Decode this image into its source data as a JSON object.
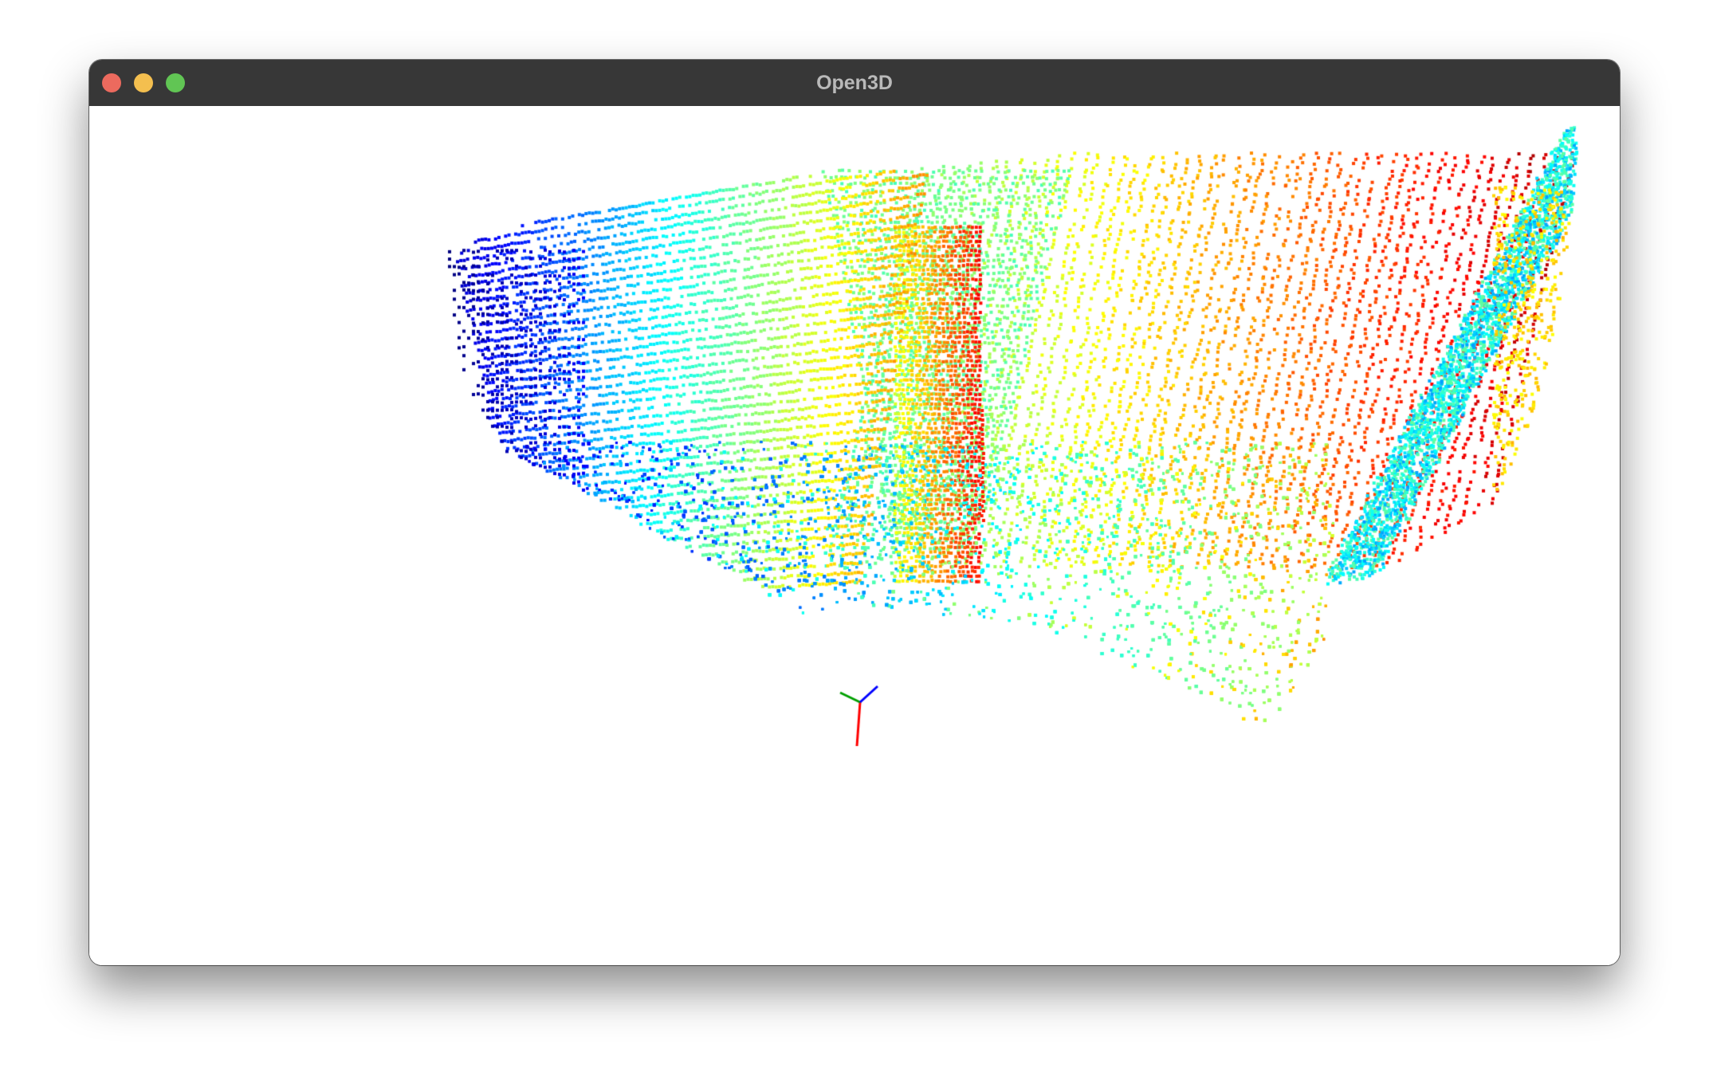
{
  "window": {
    "title": "Open3D",
    "controls": {
      "close": {
        "icon": "close-icon",
        "color": "#ec6a5e"
      },
      "minimize": {
        "icon": "minimize-icon",
        "color": "#f4bf4f"
      },
      "maximize": {
        "icon": "maximize-icon",
        "color": "#61c554"
      }
    }
  },
  "viewer": {
    "background_color": "#ffffff",
    "point_cloud": {
      "colormap": "jet",
      "colors": [
        "#000033",
        "#00008f",
        "#0000ff",
        "#0070ff",
        "#00dfff",
        "#50ffaf",
        "#bfff40",
        "#ffff00",
        "#ff7000"
      ]
    },
    "coordinate_frame": {
      "axes": [
        {
          "name": "x",
          "color": "#ff0000"
        },
        {
          "name": "y",
          "color": "#00a000"
        },
        {
          "name": "z",
          "color": "#0000ff"
        }
      ]
    }
  }
}
